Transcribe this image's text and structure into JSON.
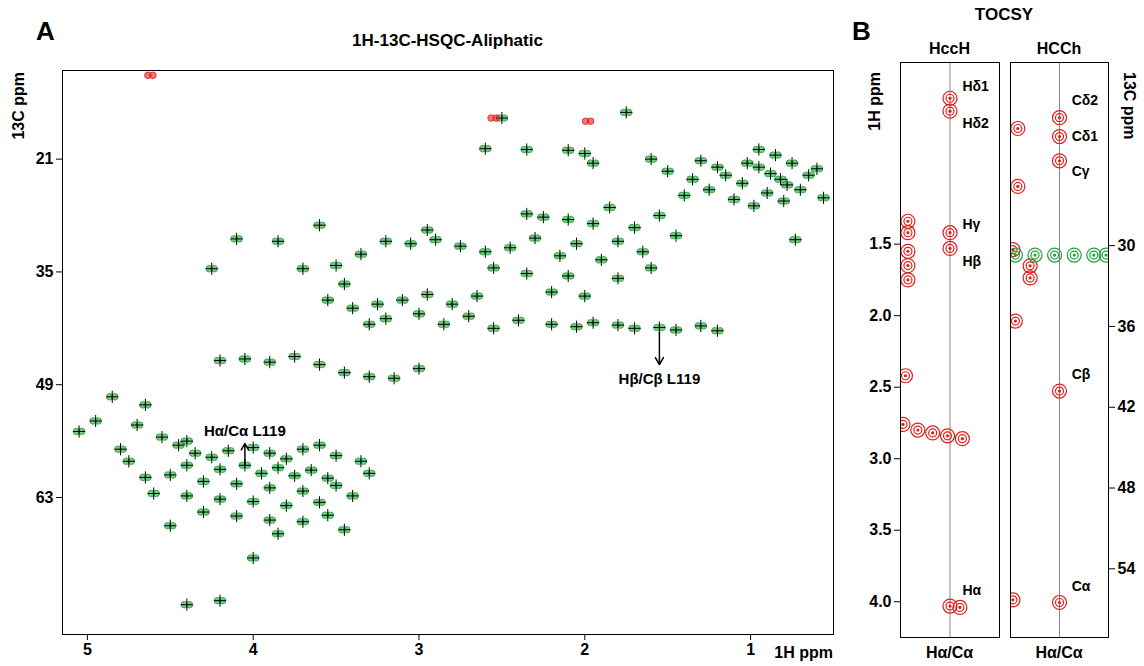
{
  "chart_data": [
    {
      "panel": "A",
      "type": "scatter",
      "title": "1H-13C-HSQC-Aliphatic",
      "x_label": "1H ppm",
      "y_label": "13C ppm",
      "xlim": [
        5.15,
        0.5
      ],
      "ylim": [
        80,
        10
      ],
      "xticks": [
        5,
        4,
        3,
        2,
        1
      ],
      "yticks": [
        21,
        35,
        49,
        63
      ],
      "series": [
        {
          "color": "#22a33a",
          "marker": "plus",
          "x": [
            1.02,
            0.95,
            0.88,
            0.82,
            0.78,
            0.7,
            0.9,
            1.05,
            1.15,
            1.2,
            1.3,
            0.95,
            0.85,
            0.75,
            0.65,
            0.6,
            1.1,
            0.98,
            0.8,
            1.25,
            1.4,
            0.56,
            0.73,
            2.5,
            2.1,
            2.0,
            1.95,
            1.75,
            1.6,
            1.5,
            1.35,
            2.35,
            2.6,
            2.35,
            2.25,
            2.1,
            1.95,
            1.85,
            1.7,
            1.55,
            1.45,
            2.3,
            2.05,
            1.8,
            1.65,
            1.9,
            2.15,
            2.45,
            2.6,
            2.75,
            2.9,
            3.05,
            3.2,
            2.95,
            3.6,
            3.35,
            2.55,
            2.35,
            2.1,
            1.8,
            1.6,
            2.2,
            2.0,
            2.95,
            3.1,
            2.8,
            3.0,
            2.7,
            2.85,
            3.2,
            3.3,
            2.55,
            2.65,
            2.2,
            2.05,
            1.95,
            1.8,
            1.7,
            1.55,
            1.45,
            1.3,
            2.4,
            1.2,
            4.2,
            4.05,
            3.9,
            3.75,
            3.6,
            3.45,
            3.3,
            3.15,
            3.0,
            4.85,
            4.65,
            4.95,
            5.05,
            4.7,
            4.55,
            4.4,
            4.8,
            4.45,
            4.35,
            4.25,
            4.15,
            4.0,
            3.9,
            3.8,
            3.7,
            3.6,
            3.5,
            4.4,
            4.2,
            4.05,
            3.95,
            3.85,
            3.75,
            3.65,
            3.55,
            4.5,
            4.3,
            4.1,
            3.9,
            3.7,
            3.5,
            4.6,
            4.4,
            4.2,
            4.0,
            3.8,
            3.6,
            3.4,
            4.3,
            4.1,
            3.9,
            3.7,
            3.55,
            3.45,
            4.5,
            3.85,
            4.75,
            4.65,
            3.35,
            3.3,
            4.4,
            4.2,
            4.0,
            3.7,
            3.5,
            3.45,
            4.1,
            4.25,
            3.85,
            3.55,
            3.4,
            3.25
          ],
          "y": [
            21.5,
            22.0,
            22.8,
            23.5,
            24.2,
            24.8,
            25.2,
            24.0,
            23.0,
            22.0,
            21.2,
            19.8,
            20.5,
            21.5,
            23.0,
            22.2,
            26.0,
            26.8,
            26.2,
            24.8,
            25.5,
            25.8,
            31.0,
            15.9,
            19.9,
            20.3,
            21.5,
            15.2,
            21.0,
            22.5,
            23.5,
            19.8,
            19.7,
            27.8,
            28.2,
            28.5,
            29.0,
            27.0,
            29.5,
            28.0,
            30.5,
            30.8,
            31.5,
            31.2,
            32.5,
            33.5,
            33.0,
            32.0,
            32.5,
            31.8,
            31.0,
            31.5,
            31.2,
            29.8,
            29.2,
            32.8,
            34.5,
            35.2,
            35.5,
            35.8,
            34.5,
            37.5,
            38.0,
            37.8,
            38.5,
            39.0,
            40.2,
            40.5,
            41.5,
            40.8,
            41.5,
            42.0,
            38.0,
            41.5,
            41.8,
            41.3,
            41.6,
            42.0,
            41.9,
            42.2,
            41.7,
            41.0,
            42.3,
            46.0,
            45.8,
            46.2,
            45.5,
            46.5,
            47.5,
            48.0,
            48.2,
            47.0,
            50.5,
            51.5,
            53.5,
            54.8,
            54.0,
            55.5,
            56.0,
            57.0,
            56.5,
            57.5,
            58.0,
            57.2,
            56.8,
            57.5,
            58.2,
            57.0,
            56.5,
            57.8,
            59.0,
            59.5,
            59.0,
            60.0,
            59.3,
            60.3,
            59.6,
            60.6,
            60.2,
            61.0,
            61.3,
            61.8,
            62.2,
            61.5,
            62.5,
            62.8,
            63.2,
            63.5,
            64.0,
            63.6,
            62.8,
            64.8,
            65.3,
            65.8,
            66.0,
            65.2,
            67.0,
            66.5,
            67.5,
            58.5,
            60.5,
            58.5,
            60.0,
            76.3,
            75.8,
            70.5,
            34.6,
            34.2,
            36.5,
            30.9,
            34.6,
            31.2,
            38.5,
            39.5,
            39.0
          ]
        },
        {
          "color": "#e0201b",
          "marker": "none",
          "x": [
            2.55,
            1.98,
            4.62
          ],
          "y": [
            15.9,
            16.3,
            10.6
          ]
        }
      ],
      "annotations": [
        {
          "text": "Hα/Cα L119",
          "x": 4.05,
          "y": 54.8,
          "arrow_from": [
            4.05,
            59.0
          ],
          "arrow_to": [
            4.05,
            56.3
          ]
        },
        {
          "text": "Hβ/Cβ L119",
          "x": 1.55,
          "y": 48.3,
          "arrow_from": [
            1.55,
            42.5
          ],
          "arrow_to": [
            1.55,
            46.5
          ]
        }
      ]
    },
    {
      "panel": "B",
      "title": "TOCSY",
      "subplots": [
        {
          "type": "scatter",
          "title": "HccH",
          "x_label": "Hα/Cα",
          "y_label": "1H ppm",
          "xlim": [
            -1,
            1
          ],
          "ylim": [
            4.25,
            0.23
          ],
          "tick_labels": "y",
          "yticks": [
            1.5,
            {
              "value": 2,
              "label": "2.0"
            },
            2.5,
            {
              "value": 3,
              "label": "3.0"
            },
            3.5,
            {
              "value": 4,
              "label": "4.0"
            }
          ],
          "series": [
            {
              "color": "#e0201b",
              "marker": "circle",
              "x": [
                0,
                0,
                0,
                0,
                0,
                0.2,
                -0.85,
                -0.85,
                -0.85,
                -0.85,
                -0.85,
                -0.9,
                -0.95,
                -0.65,
                -0.35,
                -0.05,
                0.25
              ],
              "y": [
                0.48,
                0.57,
                1.42,
                1.53,
                4.03,
                4.04,
                1.34,
                1.42,
                1.55,
                1.65,
                1.75,
                2.42,
                2.76,
                2.8,
                2.82,
                2.84,
                2.86
              ]
            }
          ],
          "annotations": [
            {
              "text": "Hδ1",
              "x": 0.25,
              "y": 0.4
            },
            {
              "text": "Hδ2",
              "x": 0.25,
              "y": 0.66
            },
            {
              "text": "Hγ",
              "x": 0.25,
              "y": 1.36
            },
            {
              "text": "Hβ",
              "x": 0.25,
              "y": 1.62
            },
            {
              "text": "Hα",
              "x": 0.25,
              "y": 3.92
            }
          ]
        },
        {
          "type": "scatter",
          "title": "HCCh",
          "x_label": "Hα/Cα",
          "y_label": "13C ppm",
          "xlim": [
            -1,
            1
          ],
          "ylim": [
            59.1,
            16.4
          ],
          "tick_labels": "y",
          "yticks": [
            30,
            36,
            42,
            48,
            54
          ],
          "series": [
            {
              "color": "#e0201b",
              "marker": "circle",
              "x": [
                0,
                0,
                0,
                0,
                0,
                -0.85,
                -0.85,
                -0.95,
                -0.6,
                -0.6,
                -0.9,
                -0.95
              ],
              "y": [
                20.5,
                21.9,
                23.7,
                40.8,
                56.5,
                21.3,
                25.6,
                30.3,
                31.5,
                32.4,
                35.6,
                56.3
              ]
            },
            {
              "color": "#22a33a",
              "marker": "circle",
              "x": [
                -0.9,
                -0.5,
                -0.1,
                0.3,
                0.7,
                0.95
              ],
              "y": [
                30.7,
                30.7,
                30.7,
                30.7,
                30.7,
                30.7
              ]
            }
          ],
          "annotations": [
            {
              "text": "Cδ2",
              "x": 0.25,
              "y": 19.2
            },
            {
              "text": "Cδ1",
              "x": 0.25,
              "y": 21.9
            },
            {
              "text": "Cγ",
              "x": 0.25,
              "y": 24.5
            },
            {
              "text": "Cβ",
              "x": 0.25,
              "y": 39.6
            },
            {
              "text": "Cα",
              "x": 0.25,
              "y": 55.3
            }
          ]
        }
      ]
    }
  ]
}
